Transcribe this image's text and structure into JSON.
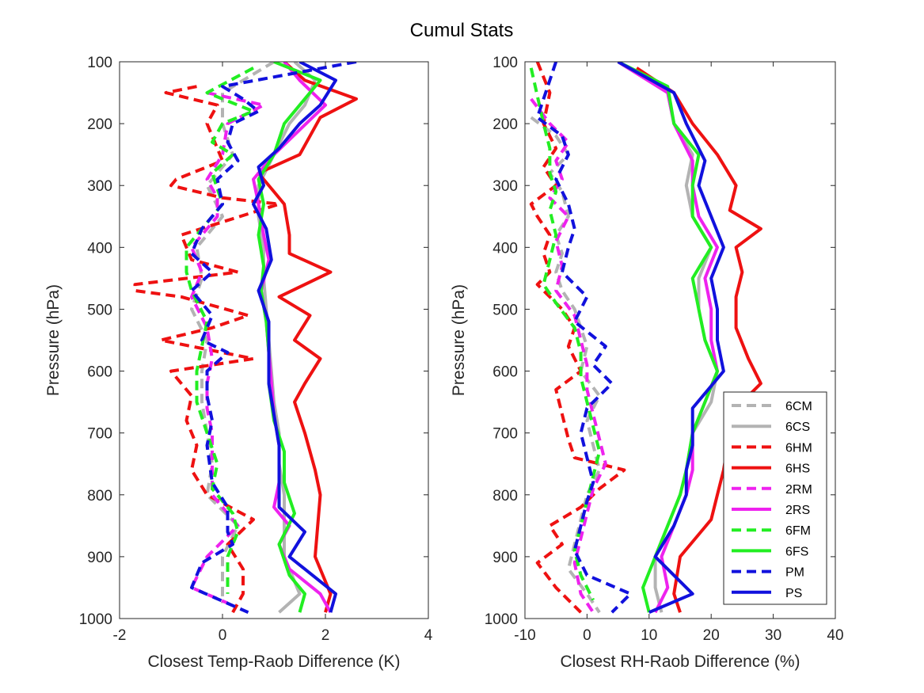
{
  "title": "Cumul Stats",
  "legend": {
    "placement": "bottom-right of right panel",
    "entries": [
      {
        "label": "6CM",
        "color": "#b3b3b3",
        "dash": true
      },
      {
        "label": "6CS",
        "color": "#b3b3b3",
        "dash": false
      },
      {
        "label": "6HM",
        "color": "#ee1111",
        "dash": true
      },
      {
        "label": "6HS",
        "color": "#ee1111",
        "dash": false
      },
      {
        "label": "2RM",
        "color": "#ee22ee",
        "dash": true
      },
      {
        "label": "2RS",
        "color": "#ee22ee",
        "dash": false
      },
      {
        "label": "6FM",
        "color": "#22ee22",
        "dash": true
      },
      {
        "label": "6FS",
        "color": "#22ee22",
        "dash": false
      },
      {
        "label": "PM",
        "color": "#1111dd",
        "dash": true
      },
      {
        "label": "PS",
        "color": "#1111dd",
        "dash": false
      }
    ]
  },
  "chart_data": [
    {
      "type": "line",
      "title": "Cumul Stats",
      "xlabel": "Closest Temp-Raob Difference (K)",
      "ylabel": "Pressure (hPa)",
      "xlim": [
        -2,
        4
      ],
      "ylim": [
        100,
        1000
      ],
      "y_reversed": true,
      "xticks": [
        -2,
        0,
        2,
        4
      ],
      "yticks": [
        100,
        200,
        300,
        400,
        500,
        600,
        700,
        800,
        900,
        1000
      ],
      "grid": false,
      "series": [
        {
          "name": "6CM",
          "p": [
            100,
            150,
            200,
            250,
            300,
            350,
            400,
            450,
            500,
            550,
            600,
            650,
            700,
            750,
            800,
            850,
            900,
            950,
            975
          ],
          "x": [
            1.0,
            0.0,
            0.0,
            0.2,
            -0.3,
            0.0,
            -0.5,
            -0.4,
            -0.6,
            -0.3,
            -0.4,
            -0.4,
            -0.3,
            -0.2,
            -0.3,
            0.3,
            0.0,
            0.0,
            0.0
          ]
        },
        {
          "name": "6CS",
          "p": [
            100,
            130,
            170,
            200,
            250,
            300,
            350,
            400,
            450,
            500,
            550,
            600,
            650,
            700,
            750,
            800,
            850,
            900,
            960,
            990
          ],
          "x": [
            1.4,
            1.8,
            1.6,
            1.3,
            1.0,
            0.7,
            0.7,
            0.8,
            0.8,
            0.85,
            0.9,
            0.95,
            1.0,
            1.1,
            1.1,
            1.2,
            1.2,
            1.2,
            1.5,
            1.1
          ]
        },
        {
          "name": "6HM",
          "p": [
            140,
            150,
            170,
            200,
            260,
            290,
            300,
            320,
            330,
            380,
            420,
            440,
            460,
            470,
            480,
            510,
            530,
            550,
            580,
            600,
            640,
            680,
            720,
            760,
            800,
            840,
            880,
            920,
            960,
            990
          ],
          "x": [
            -0.5,
            -1.1,
            -0.1,
            -0.3,
            0.0,
            -0.9,
            -1.0,
            0.0,
            1.1,
            -0.8,
            -0.6,
            0.3,
            -1.7,
            -1.7,
            -0.8,
            0.5,
            -0.2,
            -1.2,
            0.6,
            -1.0,
            -0.6,
            -0.7,
            -0.5,
            -0.6,
            -0.3,
            0.6,
            0.1,
            0.4,
            0.4,
            0.2
          ]
        },
        {
          "name": "6HS",
          "p": [
            100,
            130,
            160,
            190,
            250,
            280,
            310,
            330,
            380,
            410,
            440,
            480,
            510,
            550,
            580,
            620,
            650,
            700,
            760,
            800,
            900,
            960,
            990
          ],
          "x": [
            1.2,
            1.6,
            2.6,
            1.9,
            1.5,
            0.7,
            1.0,
            1.2,
            1.3,
            1.3,
            2.1,
            1.1,
            1.7,
            1.4,
            1.9,
            1.6,
            1.4,
            1.6,
            1.8,
            1.9,
            1.8,
            2.1,
            2.0
          ]
        },
        {
          "name": "2RM",
          "p": [
            150,
            170,
            200,
            250,
            290,
            320,
            350,
            400,
            440,
            480,
            530,
            580,
            620,
            660,
            700,
            750,
            800,
            850,
            900,
            950,
            975
          ],
          "x": [
            -0.3,
            0.8,
            0.1,
            0.0,
            -0.3,
            -0.1,
            -0.1,
            -0.6,
            -0.4,
            -0.6,
            -0.3,
            -0.2,
            -0.3,
            -0.3,
            -0.2,
            -0.2,
            -0.2,
            0.3,
            -0.3,
            -0.6,
            0.1
          ]
        },
        {
          "name": "2RS",
          "p": [
            100,
            130,
            170,
            210,
            250,
            290,
            330,
            380,
            420,
            470,
            520,
            570,
            620,
            670,
            720,
            780,
            820,
            850,
            880,
            920,
            960,
            990
          ],
          "x": [
            1.2,
            1.5,
            2.0,
            1.5,
            1.0,
            0.6,
            0.7,
            0.8,
            0.9,
            0.75,
            0.85,
            0.9,
            0.95,
            1.0,
            1.1,
            1.1,
            1.0,
            1.3,
            1.1,
            1.3,
            1.9,
            2.1
          ]
        },
        {
          "name": "6FM",
          "p": [
            110,
            150,
            180,
            200,
            230,
            250,
            280,
            330,
            360,
            400,
            440,
            470,
            520,
            560,
            600,
            650,
            700,
            750,
            790,
            830,
            860,
            900,
            930,
            960
          ],
          "x": [
            0.6,
            -0.3,
            0.6,
            0.0,
            -0.2,
            0.2,
            -0.2,
            0.0,
            -0.3,
            -0.7,
            -0.7,
            -0.6,
            -0.3,
            -0.4,
            -0.5,
            -0.5,
            -0.3,
            -0.1,
            -0.2,
            0.2,
            0.3,
            0.1,
            0.1,
            0.1
          ]
        },
        {
          "name": "6FS",
          "p": [
            100,
            130,
            170,
            200,
            250,
            290,
            330,
            380,
            430,
            470,
            520,
            570,
            620,
            680,
            730,
            780,
            830,
            880,
            930,
            960,
            990
          ],
          "x": [
            1.0,
            1.9,
            1.5,
            1.2,
            1.0,
            0.7,
            0.8,
            0.7,
            0.8,
            0.75,
            0.85,
            0.9,
            0.9,
            1.0,
            1.2,
            1.2,
            1.4,
            1.1,
            1.3,
            1.6,
            1.5
          ]
        },
        {
          "name": "PM",
          "p": [
            100,
            140,
            160,
            180,
            200,
            230,
            260,
            290,
            330,
            370,
            410,
            440,
            470,
            510,
            550,
            570,
            600,
            640,
            680,
            720,
            780,
            820,
            860,
            880,
            910,
            950,
            990
          ],
          "x": [
            2.6,
            0.0,
            0.4,
            0.7,
            0.2,
            0.1,
            0.3,
            -0.1,
            0.0,
            -0.4,
            -0.6,
            -0.2,
            -0.6,
            -0.2,
            -0.4,
            0.1,
            -0.3,
            -0.3,
            -0.2,
            -0.3,
            -0.2,
            0.1,
            0.1,
            0.2,
            -0.4,
            -0.6,
            0.5
          ]
        },
        {
          "name": "PS",
          "p": [
            100,
            130,
            170,
            200,
            240,
            270,
            300,
            330,
            370,
            420,
            470,
            520,
            570,
            620,
            670,
            720,
            780,
            820,
            860,
            900,
            960,
            990
          ],
          "x": [
            1.5,
            2.2,
            1.9,
            1.5,
            1.1,
            0.7,
            0.8,
            0.6,
            0.85,
            0.95,
            0.7,
            0.9,
            0.9,
            0.9,
            1.0,
            1.1,
            1.1,
            1.1,
            1.6,
            1.3,
            2.2,
            2.1
          ]
        }
      ]
    },
    {
      "type": "line",
      "xlabel": "Closest RH-Raob Difference (%)",
      "ylabel": "Pressure (hPa)",
      "xlim": [
        -10,
        40
      ],
      "ylim": [
        100,
        1000
      ],
      "y_reversed": true,
      "xticks": [
        -10,
        0,
        10,
        20,
        30,
        40
      ],
      "yticks": [
        100,
        200,
        300,
        400,
        500,
        600,
        700,
        800,
        900,
        1000
      ],
      "grid": false,
      "series": [
        {
          "name": "6CM",
          "p": [
            190,
            220,
            250,
            280,
            310,
            350,
            380,
            410,
            440,
            470,
            500,
            530,
            560,
            600,
            640,
            680,
            720,
            760,
            800,
            840,
            880,
            920,
            960,
            990
          ],
          "x": [
            -9,
            -5,
            -3,
            -6,
            -4,
            -3,
            -5,
            -4,
            -5,
            -4,
            -2,
            -1,
            0,
            -1,
            2,
            0,
            1,
            2,
            0,
            -1,
            -2,
            -3,
            0,
            2
          ]
        },
        {
          "name": "6CS",
          "p": [
            100,
            150,
            200,
            250,
            300,
            350,
            400,
            450,
            500,
            550,
            600,
            650,
            700,
            760,
            800,
            850,
            900,
            950,
            990
          ],
          "x": [
            5,
            13,
            14,
            17,
            16,
            17,
            20,
            18,
            18,
            19,
            21,
            20,
            17,
            16,
            15,
            13,
            11,
            11,
            12
          ]
        },
        {
          "name": "6HM",
          "p": [
            100,
            150,
            200,
            240,
            270,
            300,
            330,
            350,
            380,
            410,
            440,
            460,
            480,
            500,
            530,
            560,
            600,
            630,
            670,
            710,
            740,
            760,
            790,
            820,
            850,
            880,
            910,
            950,
            990
          ],
          "x": [
            -8,
            -6,
            -7,
            -5,
            -7,
            -5,
            -9,
            -8,
            -6,
            -7,
            -6,
            -8,
            -6,
            -4,
            -2,
            -3,
            -1,
            -5,
            -4,
            -3,
            -2,
            6,
            2,
            -1,
            -6,
            -4,
            -8,
            -5,
            -1
          ]
        },
        {
          "name": "6HS",
          "p": [
            110,
            150,
            200,
            250,
            300,
            340,
            370,
            400,
            440,
            480,
            530,
            580,
            620,
            660,
            700,
            760,
            800,
            840,
            900,
            960,
            990
          ],
          "x": [
            8,
            14,
            17,
            21,
            24,
            23,
            28,
            24,
            25,
            24,
            24,
            26,
            28,
            24,
            23,
            22,
            21,
            20,
            15,
            14,
            15
          ]
        },
        {
          "name": "2RM",
          "p": [
            160,
            200,
            230,
            260,
            290,
            320,
            350,
            390,
            430,
            470,
            510,
            550,
            590,
            630,
            670,
            710,
            750,
            790,
            830,
            870,
            910,
            960,
            990
          ],
          "x": [
            -9,
            -6,
            -3,
            -5,
            -4,
            -6,
            -3,
            -5,
            -4,
            -5,
            -2,
            -1,
            0,
            0,
            1,
            2,
            3,
            1,
            0,
            -1,
            -2,
            -1,
            1
          ]
        },
        {
          "name": "2RS",
          "p": [
            100,
            150,
            200,
            260,
            300,
            350,
            400,
            450,
            500,
            550,
            600,
            650,
            700,
            760,
            800,
            850,
            900,
            950,
            990
          ],
          "x": [
            5,
            13,
            14,
            17,
            17,
            18,
            21,
            19,
            20,
            20,
            21,
            19,
            17,
            17,
            16,
            14,
            12,
            13,
            11
          ]
        },
        {
          "name": "6FM",
          "p": [
            110,
            200,
            240,
            280,
            310,
            340,
            380,
            420,
            460,
            490,
            530,
            570,
            610,
            650,
            690,
            730,
            770,
            810,
            850,
            890,
            930,
            970
          ],
          "x": [
            -9,
            -7,
            -6,
            -6,
            -5,
            -6,
            -5,
            -6,
            -7,
            -5,
            -2,
            -1,
            -1,
            0,
            1,
            2,
            1,
            0,
            -1,
            -2,
            -1,
            1
          ]
        },
        {
          "name": "6FS",
          "p": [
            100,
            140,
            200,
            250,
            300,
            350,
            400,
            450,
            500,
            550,
            600,
            650,
            700,
            760,
            800,
            850,
            900,
            950,
            990
          ],
          "x": [
            5,
            13,
            14,
            18,
            17,
            17,
            20,
            17,
            18,
            19,
            21,
            19,
            17,
            16,
            15,
            13,
            11,
            9,
            10
          ]
        },
        {
          "name": "PM",
          "p": [
            100,
            190,
            220,
            250,
            290,
            330,
            370,
            400,
            440,
            480,
            520,
            560,
            590,
            620,
            660,
            700,
            740,
            780,
            810,
            850,
            890,
            930,
            960,
            990
          ],
          "x": [
            -5,
            -8,
            -4,
            -3,
            -5,
            -3,
            -2,
            -3,
            -4,
            0,
            -2,
            3,
            1,
            4,
            0,
            -1,
            0,
            1,
            0,
            -1,
            -2,
            0,
            7,
            4
          ]
        },
        {
          "name": "PS",
          "p": [
            100,
            150,
            200,
            260,
            300,
            350,
            400,
            450,
            500,
            550,
            600,
            660,
            720,
            760,
            800,
            850,
            900,
            960,
            990
          ],
          "x": [
            5,
            14,
            16,
            19,
            18,
            20,
            22,
            20,
            21,
            21,
            22,
            17,
            17,
            16,
            16,
            14,
            11,
            17,
            10
          ]
        }
      ]
    }
  ]
}
